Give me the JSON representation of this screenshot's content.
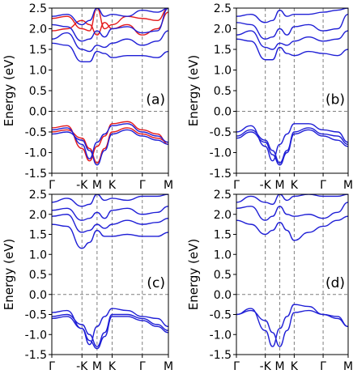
{
  "figure": {
    "ylabel": "Energy (eV)",
    "colors": {
      "red": "#e41a1c",
      "blue": "#1f1fd6",
      "dashed": "#7f7f7f"
    }
  },
  "chart_data": [
    {
      "type": "line",
      "panel_label": "(a)",
      "xticks": [
        "Γ",
        "-K",
        "M",
        "K",
        "Γ",
        "M"
      ],
      "xtick_values": [
        0,
        1.0,
        1.5,
        2.0,
        3.0,
        3.866
      ],
      "yticks": [
        "-1.5",
        "-1.0",
        "-0.5",
        "0.0",
        "0.5",
        "1.0",
        "1.5",
        "2.0",
        "2.5"
      ],
      "ylim": [
        -1.5,
        2.5
      ],
      "ylabel": "Energy (eV)",
      "fermi_level": 0.0,
      "series": [
        {
          "color": "red",
          "lines": [
            {
              "x": [
                0,
                0.5,
                1.0,
                1.25,
                1.5,
                1.75,
                2.0,
                2.5,
                3.0,
                3.5,
                3.866
              ],
              "y": [
                -0.4,
                -0.35,
                -0.9,
                -1.2,
                -0.85,
                -0.6,
                -0.3,
                -0.25,
                -0.45,
                -0.55,
                -0.8
              ]
            },
            {
              "x": [
                0,
                0.5,
                1.0,
                1.25,
                1.5,
                1.75,
                2.0,
                2.5,
                3.0,
                3.5,
                3.866
              ],
              "y": [
                -0.5,
                -0.45,
                -0.65,
                -0.9,
                -1.25,
                -0.9,
                -0.5,
                -0.4,
                -0.55,
                -0.65,
                -0.75
              ]
            },
            {
              "x": [
                0,
                0.5,
                1.0,
                1.25,
                1.5,
                1.75,
                2.0,
                2.5,
                3.0,
                3.5,
                3.866
              ],
              "y": [
                2.25,
                2.3,
                2.0,
                1.95,
                2.5,
                2.0,
                2.1,
                2.3,
                2.25,
                2.2,
                2.5
              ]
            },
            {
              "x": [
                0,
                0.5,
                1.0,
                1.25,
                1.5,
                1.75,
                2.0,
                2.5,
                3.0,
                3.5,
                3.866
              ],
              "y": [
                1.95,
                2.0,
                2.2,
                2.1,
                1.85,
                2.15,
                2.0,
                2.1,
                1.85,
                2.0,
                2.4
              ]
            }
          ]
        },
        {
          "color": "blue",
          "lines": [
            {
              "x": [
                0,
                0.5,
                1.0,
                1.25,
                1.5,
                1.75,
                2.0,
                2.5,
                3.0,
                3.5,
                3.866
              ],
              "y": [
                -0.45,
                -0.4,
                -0.8,
                -1.15,
                -0.75,
                -0.55,
                -0.35,
                -0.3,
                -0.5,
                -0.6,
                -0.75
              ]
            },
            {
              "x": [
                0,
                0.5,
                1.0,
                1.25,
                1.5,
                1.75,
                2.0,
                2.5,
                3.0,
                3.5,
                3.866
              ],
              "y": [
                -0.55,
                -0.5,
                -0.7,
                -0.95,
                -1.3,
                -0.95,
                -0.55,
                -0.45,
                -0.6,
                -0.7,
                -0.8
              ]
            },
            {
              "x": [
                0,
                0.5,
                1.0,
                1.25,
                1.5,
                1.75,
                2.0,
                2.5,
                3.0,
                3.5,
                3.866
              ],
              "y": [
                1.65,
                1.6,
                1.2,
                1.2,
                1.45,
                1.4,
                1.3,
                1.35,
                1.35,
                1.3,
                1.45
              ]
            },
            {
              "x": [
                0,
                0.5,
                1.0,
                1.25,
                1.5,
                1.75,
                2.0,
                2.5,
                3.0,
                3.5,
                3.866
              ],
              "y": [
                1.75,
                1.9,
                1.5,
                1.45,
                1.6,
                1.55,
                1.65,
                1.75,
                1.6,
                1.7,
                1.95
              ]
            },
            {
              "x": [
                0,
                0.5,
                1.0,
                1.25,
                1.5,
                1.75,
                2.0,
                2.5,
                3.0,
                3.5,
                3.866
              ],
              "y": [
                2.1,
                2.05,
                1.7,
                1.75,
                1.95,
                1.8,
                2.0,
                2.05,
                1.9,
                1.95,
                2.5
              ]
            },
            {
              "x": [
                0,
                0.5,
                1.0,
                1.25,
                1.5,
                1.75,
                2.0,
                2.5,
                3.0,
                3.5,
                3.866
              ],
              "y": [
                2.3,
                2.35,
                2.1,
                2.2,
                2.5,
                2.3,
                2.35,
                2.3,
                2.45,
                2.4,
                2.5
              ]
            }
          ]
        }
      ]
    },
    {
      "type": "line",
      "panel_label": "(b)",
      "xticks": [
        "Γ",
        "-K",
        "M",
        "K",
        "Γ",
        "M"
      ],
      "xtick_values": [
        0,
        1.0,
        1.5,
        2.0,
        3.0,
        3.866
      ],
      "yticks": [
        "-1.5",
        "-1.0",
        "-0.5",
        "0.0",
        "0.5",
        "1.0",
        "1.5",
        "2.0",
        "2.5"
      ],
      "ylim": [
        -1.5,
        2.5
      ],
      "fermi_level": 0.0,
      "series": [
        {
          "color": "blue",
          "lines": [
            {
              "x": [
                0,
                0.5,
                1.0,
                1.25,
                1.5,
                1.75,
                2.0,
                2.5,
                3.0,
                3.5,
                3.866
              ],
              "y": [
                -0.5,
                -0.35,
                -0.85,
                -1.2,
                -0.8,
                -0.55,
                -0.3,
                -0.3,
                -0.45,
                -0.5,
                -0.75
              ]
            },
            {
              "x": [
                0,
                0.5,
                1.0,
                1.25,
                1.5,
                1.75,
                2.0,
                2.5,
                3.0,
                3.5,
                3.866
              ],
              "y": [
                -0.6,
                -0.45,
                -0.7,
                -0.95,
                -1.25,
                -0.95,
                -0.5,
                -0.4,
                -0.55,
                -0.6,
                -0.8
              ]
            },
            {
              "x": [
                0,
                0.5,
                1.0,
                1.25,
                1.5,
                1.75,
                2.0,
                2.5,
                3.0,
                3.5,
                3.866
              ],
              "y": [
                -0.65,
                -0.5,
                -0.75,
                -1.05,
                -1.3,
                -1.0,
                -0.55,
                -0.45,
                -0.6,
                -0.7,
                -0.85
              ]
            },
            {
              "x": [
                0,
                0.5,
                1.0,
                1.25,
                1.5,
                1.75,
                2.0,
                2.5,
                3.0,
                3.5,
                3.866
              ],
              "y": [
                1.75,
                1.7,
                1.25,
                1.25,
                1.55,
                1.4,
                1.35,
                1.45,
                1.4,
                1.35,
                1.5
              ]
            },
            {
              "x": [
                0,
                0.5,
                1.0,
                1.25,
                1.5,
                1.75,
                2.0,
                2.5,
                3.0,
                3.5,
                3.866
              ],
              "y": [
                1.85,
                1.95,
                1.55,
                1.5,
                1.65,
                1.6,
                1.7,
                1.8,
                1.7,
                1.75,
                1.95
              ]
            },
            {
              "x": [
                0,
                0.5,
                1.0,
                1.25,
                1.5,
                1.75,
                2.0,
                2.5,
                3.0,
                3.5,
                3.866
              ],
              "y": [
                2.15,
                2.1,
                1.75,
                1.8,
                2.0,
                1.85,
                2.05,
                2.1,
                1.95,
                2.0,
                2.35
              ]
            },
            {
              "x": [
                0,
                0.5,
                1.0,
                1.25,
                1.5,
                1.75,
                2.0,
                2.5,
                3.0,
                3.5,
                3.866
              ],
              "y": [
                2.3,
                2.35,
                2.15,
                2.2,
                2.45,
                2.3,
                2.35,
                2.35,
                2.4,
                2.45,
                2.5
              ]
            }
          ]
        }
      ]
    },
    {
      "type": "line",
      "panel_label": "(c)",
      "xticks": [
        "Γ",
        "-K",
        "M",
        "K",
        "Γ",
        "M"
      ],
      "xtick_values": [
        0,
        1.0,
        1.5,
        2.0,
        3.0,
        3.866
      ],
      "yticks": [
        "-1.5",
        "-1.0",
        "-0.5",
        "0.0",
        "0.5",
        "1.0",
        "1.5",
        "2.0",
        "2.5"
      ],
      "ylim": [
        -1.5,
        2.5
      ],
      "fermi_level": 0.0,
      "series": [
        {
          "color": "blue",
          "lines": [
            {
              "x": [
                0,
                0.5,
                1.0,
                1.25,
                1.5,
                1.75,
                2.0,
                2.5,
                3.0,
                3.5,
                3.866
              ],
              "y": [
                -0.45,
                -0.4,
                -0.85,
                -1.25,
                -0.8,
                -0.55,
                -0.35,
                -0.4,
                -0.55,
                -0.6,
                -0.8
              ]
            },
            {
              "x": [
                0,
                0.5,
                1.0,
                1.25,
                1.5,
                1.75,
                2.0,
                2.5,
                3.0,
                3.5,
                3.866
              ],
              "y": [
                -0.55,
                -0.5,
                -0.75,
                -1.0,
                -1.3,
                -0.95,
                -0.5,
                -0.5,
                -0.6,
                -0.75,
                -0.9
              ]
            },
            {
              "x": [
                0,
                0.5,
                1.0,
                1.25,
                1.5,
                1.75,
                2.0,
                2.5,
                3.0,
                3.5,
                3.866
              ],
              "y": [
                -0.6,
                -0.55,
                -0.85,
                -1.15,
                -1.35,
                -1.05,
                -0.55,
                -0.55,
                -0.65,
                -0.8,
                -0.95
              ]
            },
            {
              "x": [
                0,
                0.5,
                1.0,
                1.25,
                1.5,
                1.75,
                2.0,
                2.5,
                3.0,
                3.5,
                3.866
              ],
              "y": [
                1.75,
                1.7,
                1.15,
                1.3,
                1.6,
                1.45,
                1.45,
                1.5,
                1.45,
                1.45,
                1.55
              ]
            },
            {
              "x": [
                0,
                0.5,
                1.0,
                1.25,
                1.5,
                1.75,
                2.0,
                2.5,
                3.0,
                3.5,
                3.866
              ],
              "y": [
                1.95,
                2.0,
                1.55,
                1.6,
                1.75,
                1.65,
                1.75,
                1.85,
                1.75,
                1.8,
                1.9
              ]
            },
            {
              "x": [
                0,
                0.5,
                1.0,
                1.25,
                1.5,
                1.75,
                2.0,
                2.5,
                3.0,
                3.5,
                3.866
              ],
              "y": [
                2.1,
                2.15,
                1.85,
                1.9,
                2.05,
                1.9,
                2.1,
                2.15,
                2.0,
                2.05,
                2.2
              ]
            },
            {
              "x": [
                0,
                0.5,
                1.0,
                1.25,
                1.5,
                1.75,
                2.0,
                2.5,
                3.0,
                3.5,
                3.866
              ],
              "y": [
                2.3,
                2.4,
                2.2,
                2.25,
                2.5,
                2.35,
                2.4,
                2.35,
                2.45,
                2.45,
                2.5
              ]
            }
          ]
        }
      ]
    },
    {
      "type": "line",
      "panel_label": "(d)",
      "xticks": [
        "Γ",
        "-K",
        "M",
        "K",
        "Γ",
        "M"
      ],
      "xtick_values": [
        0,
        1.0,
        1.5,
        2.0,
        3.0,
        3.866
      ],
      "yticks": [
        "-1.5",
        "-1.0",
        "-0.5",
        "0.0",
        "0.5",
        "1.0",
        "1.5",
        "2.0",
        "2.5"
      ],
      "ylim": [
        -1.5,
        2.5
      ],
      "fermi_level": 0.0,
      "series": [
        {
          "color": "blue",
          "lines": [
            {
              "x": [
                0,
                0.5,
                1.0,
                1.25,
                1.5,
                1.75,
                2.0,
                2.5,
                3.0,
                3.5,
                3.866
              ],
              "y": [
                -0.5,
                -0.35,
                -0.9,
                -1.3,
                -0.85,
                -0.55,
                -0.25,
                -0.3,
                -0.5,
                -0.55,
                -0.8
              ]
            },
            {
              "x": [
                0,
                0.5,
                1.0,
                1.25,
                1.5,
                1.75,
                2.0,
                2.5,
                3.0,
                3.5,
                3.866
              ],
              "y": [
                -0.5,
                -0.4,
                -0.65,
                -0.95,
                -1.3,
                -0.9,
                -0.45,
                -0.4,
                -0.5,
                -0.6,
                -0.8
              ]
            },
            {
              "x": [
                0,
                0.5,
                1.0,
                1.25,
                1.5,
                1.75,
                2.0,
                2.5,
                3.0,
                3.5,
                3.866
              ],
              "y": [
                1.85,
                1.75,
                1.5,
                1.6,
                1.8,
                1.6,
                1.35,
                1.55,
                1.7,
                1.85,
                1.95
              ]
            },
            {
              "x": [
                0,
                0.5,
                1.0,
                1.25,
                1.5,
                1.75,
                2.0,
                2.5,
                3.0,
                3.5,
                3.866
              ],
              "y": [
                2.15,
                2.2,
                1.85,
                1.95,
                2.2,
                2.0,
                1.95,
                2.0,
                1.9,
                2.05,
                2.3
              ]
            },
            {
              "x": [
                0,
                0.5,
                1.0,
                1.25,
                1.5,
                1.75,
                2.0,
                2.5,
                3.0,
                3.5,
                3.866
              ],
              "y": [
                2.3,
                2.45,
                2.3,
                2.25,
                2.5,
                2.35,
                2.45,
                2.5,
                2.45,
                2.45,
                2.5
              ]
            }
          ]
        }
      ]
    }
  ]
}
